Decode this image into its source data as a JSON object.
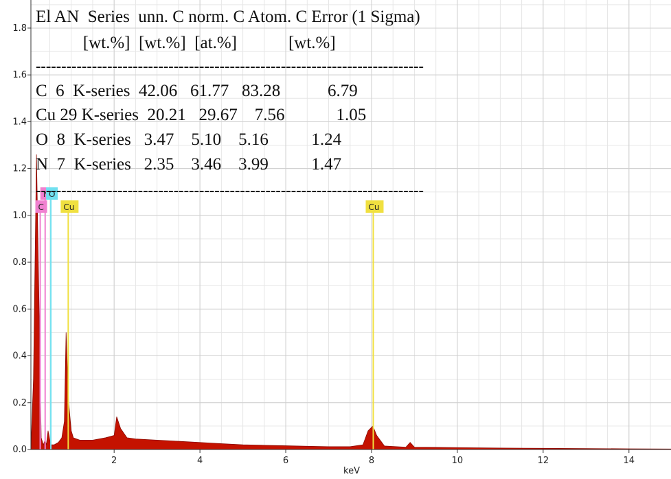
{
  "chart_data": {
    "type": "spectrum",
    "xlabel": "keV",
    "xlim": [
      0.06,
      14.98
    ],
    "ylim": [
      0,
      1.92
    ],
    "xticks": [
      2,
      4,
      6,
      8,
      10,
      12,
      14
    ],
    "yticks": [
      {
        "value": 0,
        "label": "0.0"
      },
      0.2,
      0.4,
      0.6,
      0.8,
      {
        "value": 1,
        "label": "1.0"
      },
      1.2,
      1.4,
      1.6,
      1.8
    ],
    "grid": true,
    "color": "#c41200",
    "x": [
      0.06,
      0.12,
      0.19,
      0.26,
      0.3,
      0.35,
      0.39,
      0.42,
      0.46,
      0.52,
      0.6,
      0.7,
      0.78,
      0.84,
      0.88,
      0.94,
      1.0,
      1.05,
      1.2,
      1.5,
      1.8,
      2.0,
      2.06,
      2.15,
      2.3,
      2.5,
      3.0,
      3.5,
      4.0,
      4.5,
      5.0,
      5.5,
      6.0,
      6.5,
      7.0,
      7.5,
      7.8,
      7.92,
      8.03,
      8.12,
      8.3,
      8.8,
      8.9,
      9.0,
      10.0,
      11.0,
      12.0,
      13.0,
      14.0,
      14.98
    ],
    "y": [
      0.0,
      0.3,
      1.26,
      0.5,
      0.05,
      0.02,
      0.04,
      0.02,
      0.08,
      0.02,
      0.02,
      0.03,
      0.05,
      0.12,
      0.5,
      0.2,
      0.08,
      0.05,
      0.04,
      0.04,
      0.05,
      0.06,
      0.14,
      0.09,
      0.05,
      0.045,
      0.04,
      0.035,
      0.03,
      0.025,
      0.02,
      0.018,
      0.016,
      0.014,
      0.012,
      0.012,
      0.02,
      0.08,
      0.1,
      0.06,
      0.015,
      0.01,
      0.03,
      0.01,
      0.008,
      0.006,
      0.005,
      0.004,
      0.003,
      0.002
    ],
    "peak_markers": [
      {
        "label": "C",
        "x": 0.277,
        "color": "#f080d0"
      },
      {
        "label": "N",
        "x": 0.392,
        "color": "#f080d0"
      },
      {
        "label": "O",
        "x": 0.525,
        "color": "#70e0f0"
      },
      {
        "label": "Cu",
        "x": 0.93,
        "color": "#f0e040"
      },
      {
        "label": "Cu",
        "x": 8.04,
        "color": "#f0e040"
      }
    ],
    "annotations": [
      "El AN  Series  unn. C norm. C Atom. C Error (1 Sigma)",
      "           [wt.%]  [wt.%]  [at.%]            [wt.%]",
      "----------------------------------------------------------------------------",
      "C  6  K-series  42.06   61.77   83.28           6.79",
      "Cu 29 K-series  20.21   29.67    7.56            1.05",
      "O  8  K-series   3.47    5.10    5.16          1.24",
      "N  7  K-series   2.35    3.46    3.99          1.47",
      "----------------------------------------------------------------------------"
    ]
  }
}
